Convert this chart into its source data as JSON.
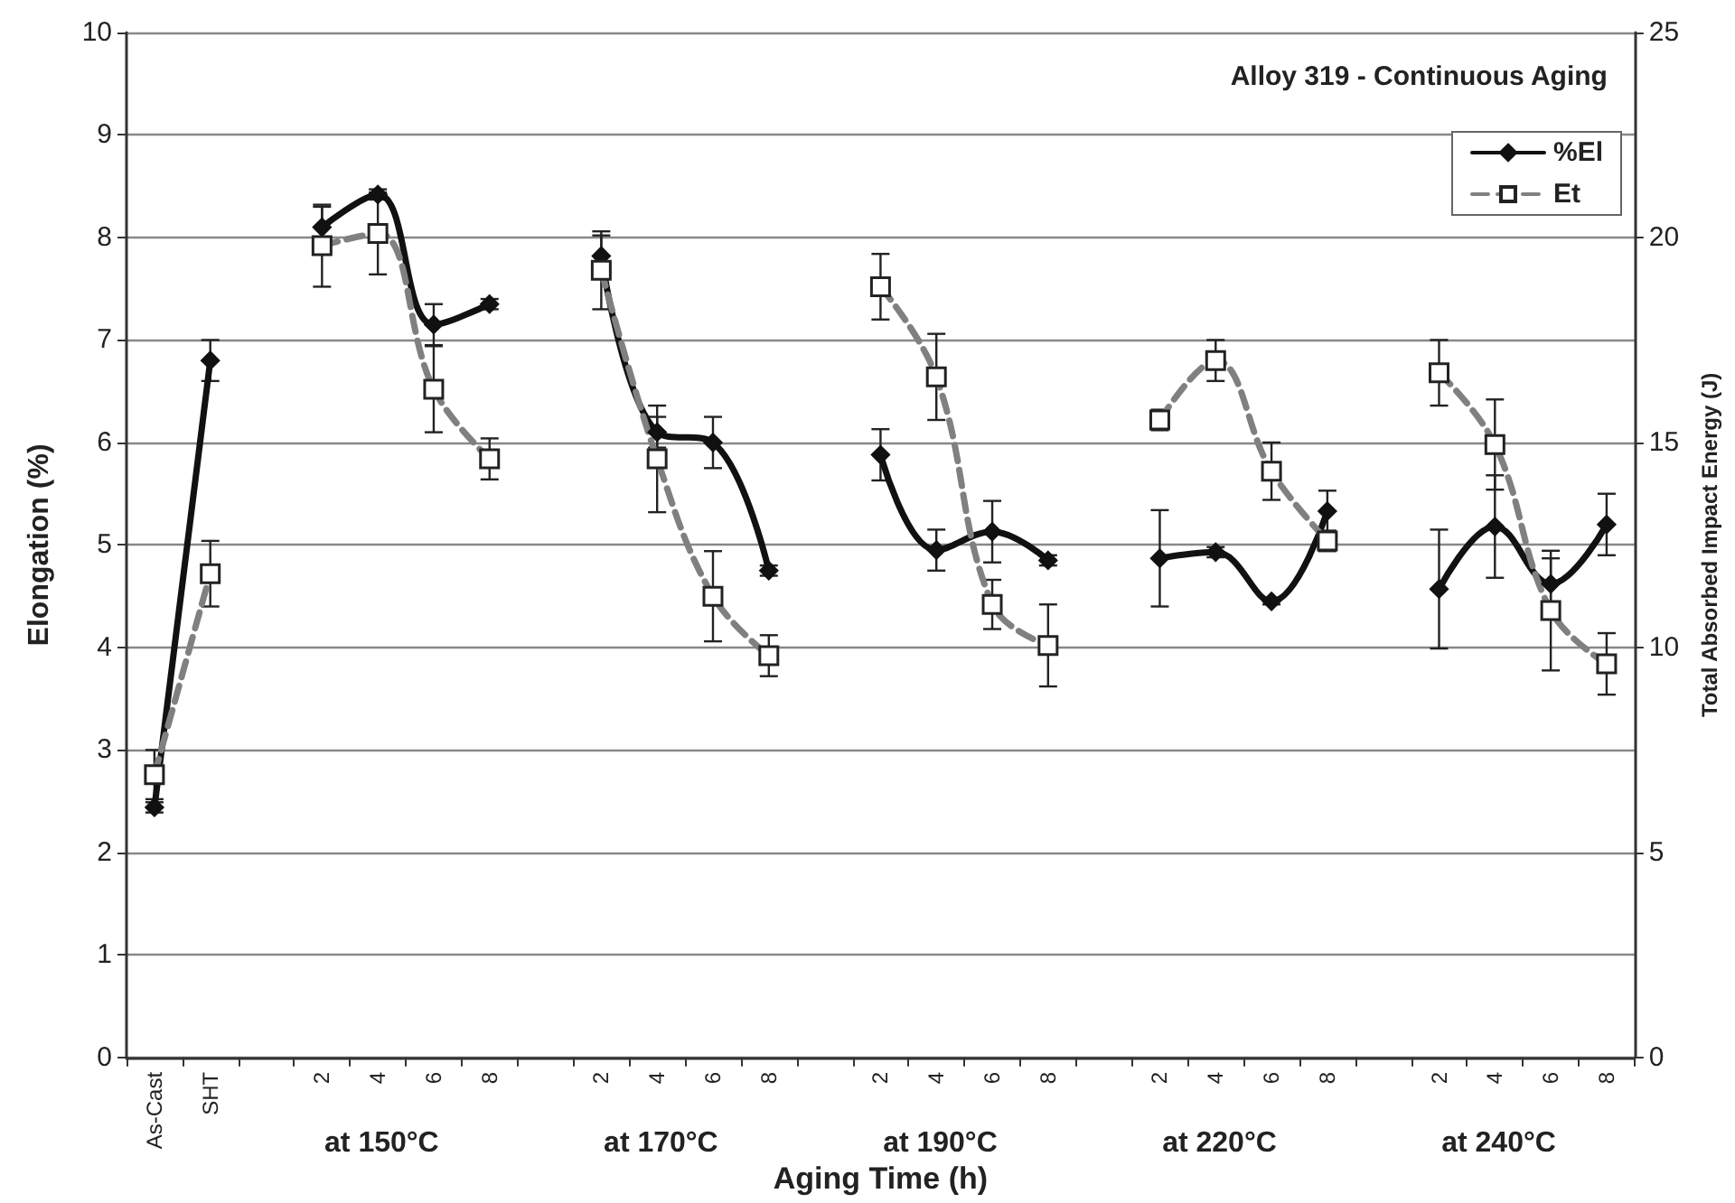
{
  "chart_data": {
    "type": "line",
    "title": "Alloy 319 - Continuous Aging",
    "xlabel": "Aging Time (h)",
    "ylabel": "Elongation (%)",
    "y2label": "Total Absorbed Impact Energy (J)",
    "categories": [
      "As-Cast",
      "SHT",
      null,
      "2",
      "4",
      "6",
      "8",
      null,
      "2",
      "4",
      "6",
      "8",
      null,
      "2",
      "4",
      "6",
      "8",
      null,
      "2",
      "4",
      "6",
      "8",
      null,
      "2",
      "4",
      "6",
      "8"
    ],
    "series": [
      {
        "name": "%El",
        "color": "#111111",
        "marker": "diamond",
        "line_style": "solid",
        "values": [
          2.44,
          6.8,
          null,
          8.1,
          8.42,
          7.15,
          7.35,
          null,
          7.82,
          6.1,
          6.0,
          4.75,
          null,
          5.88,
          4.95,
          5.13,
          4.85,
          null,
          4.87,
          4.93,
          4.45,
          5.33,
          null,
          4.57,
          5.18,
          4.62,
          5.2
        ],
        "errors": [
          0.05,
          0.2,
          null,
          0.2,
          0.05,
          0.2,
          0.05,
          null,
          0.2,
          0.15,
          0.25,
          0.05,
          null,
          0.25,
          0.2,
          0.3,
          0.05,
          null,
          0.47,
          0.05,
          0.03,
          0.2,
          null,
          0.58,
          0.5,
          0.25,
          0.3
        ]
      },
      {
        "name": "Et",
        "color": "#808080",
        "marker": "square",
        "line_style": "dashed",
        "axis": "y2",
        "values": [
          6.9,
          11.8,
          null,
          19.8,
          20.1,
          16.3,
          14.6,
          null,
          19.2,
          14.6,
          11.25,
          9.8,
          null,
          18.8,
          16.6,
          11.05,
          10.05,
          null,
          15.55,
          17.0,
          14.3,
          12.6,
          null,
          16.7,
          14.95,
          10.9,
          9.6
        ],
        "errors": [
          0.6,
          0.8,
          null,
          1.0,
          1.0,
          1.05,
          0.5,
          null,
          0.95,
          1.3,
          1.1,
          0.5,
          null,
          0.8,
          1.05,
          0.6,
          1.0,
          null,
          0.25,
          0.5,
          0.7,
          0.25,
          null,
          0.8,
          1.1,
          1.46,
          0.75
        ]
      }
    ],
    "ylim": [
      0,
      10
    ],
    "yticks": [
      0,
      1,
      2,
      3,
      4,
      5,
      6,
      7,
      8,
      9,
      10
    ],
    "y2lim": [
      0,
      25
    ],
    "y2ticks": [
      0,
      5,
      10,
      15,
      20,
      25
    ],
    "annotations": [
      "at 150°C",
      "at 170°C",
      "at 190°C",
      "at 220°C",
      "at 240°C"
    ],
    "grid": "y",
    "legend": "top right"
  }
}
